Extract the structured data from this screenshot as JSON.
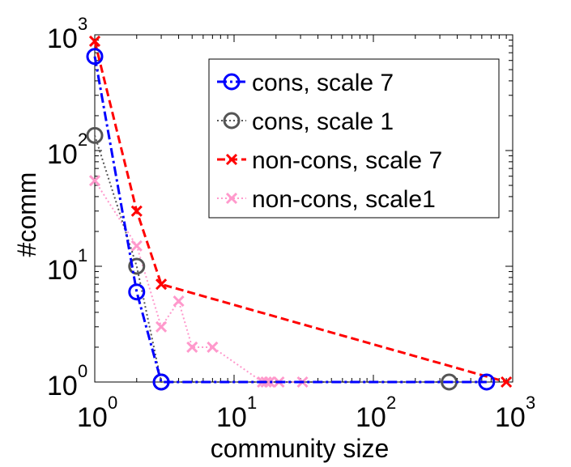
{
  "chart_data": {
    "type": "line",
    "xscale": "log",
    "yscale": "log",
    "xlim": [
      1,
      1000
    ],
    "ylim": [
      1,
      1000
    ],
    "xlabel": "community size",
    "ylabel": "#comm",
    "xticks": [
      {
        "value": 1,
        "base": "10",
        "exp": "0"
      },
      {
        "value": 10,
        "base": "10",
        "exp": "1"
      },
      {
        "value": 100,
        "base": "10",
        "exp": "2"
      },
      {
        "value": 1000,
        "base": "10",
        "exp": "3"
      }
    ],
    "yticks": [
      {
        "value": 1,
        "base": "10",
        "exp": "0"
      },
      {
        "value": 10,
        "base": "10",
        "exp": "1"
      },
      {
        "value": 100,
        "base": "10",
        "exp": "2"
      },
      {
        "value": 1000,
        "base": "10",
        "exp": "3"
      }
    ],
    "legend_position": "top-right",
    "series": [
      {
        "name": "cons, scale 7",
        "color": "#0000ff",
        "marker": "circle",
        "line_style": "dashdot",
        "x": [
          1,
          2,
          3,
          650
        ],
        "y": [
          650,
          6,
          1,
          1
        ]
      },
      {
        "name": "cons, scale 1",
        "color": "#555555",
        "marker": "circle",
        "line_style": "dotted",
        "x": [
          1,
          2,
          3,
          350
        ],
        "y": [
          135,
          10,
          1,
          1
        ]
      },
      {
        "name": "non-cons, scale 7",
        "color": "#ff0000",
        "marker": "x",
        "line_style": "dashed",
        "x": [
          1,
          2,
          3,
          900
        ],
        "y": [
          880,
          30,
          7,
          1
        ]
      },
      {
        "name": "non-cons, scale1",
        "color": "#ff99cc",
        "marker": "x",
        "line_style": "dotted",
        "x": [
          1,
          2,
          3,
          4,
          5,
          7,
          16,
          17,
          18,
          21,
          31
        ],
        "y": [
          55,
          15,
          3,
          5,
          2,
          2,
          1,
          1,
          1,
          1,
          1
        ]
      }
    ]
  }
}
